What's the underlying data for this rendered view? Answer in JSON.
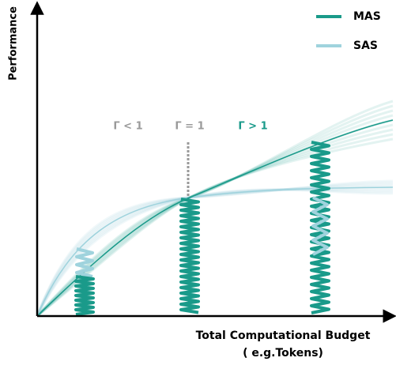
{
  "axes": {
    "y_label": "Performance",
    "x_label": "Total Computational Budget",
    "x_sublabel": "( e.g.Tokens)"
  },
  "legend": [
    {
      "label": "MAS",
      "color": "#1a9a8a"
    },
    {
      "label": "SAS",
      "color": "#9fd3dd"
    }
  ],
  "annotations": [
    {
      "label": "Γ < 1",
      "color": "#9a9a9a"
    },
    {
      "label": "Γ = 1",
      "color": "#9a9a9a"
    },
    {
      "label": "Γ > 1",
      "color": "#1a9a8a"
    }
  ]
}
